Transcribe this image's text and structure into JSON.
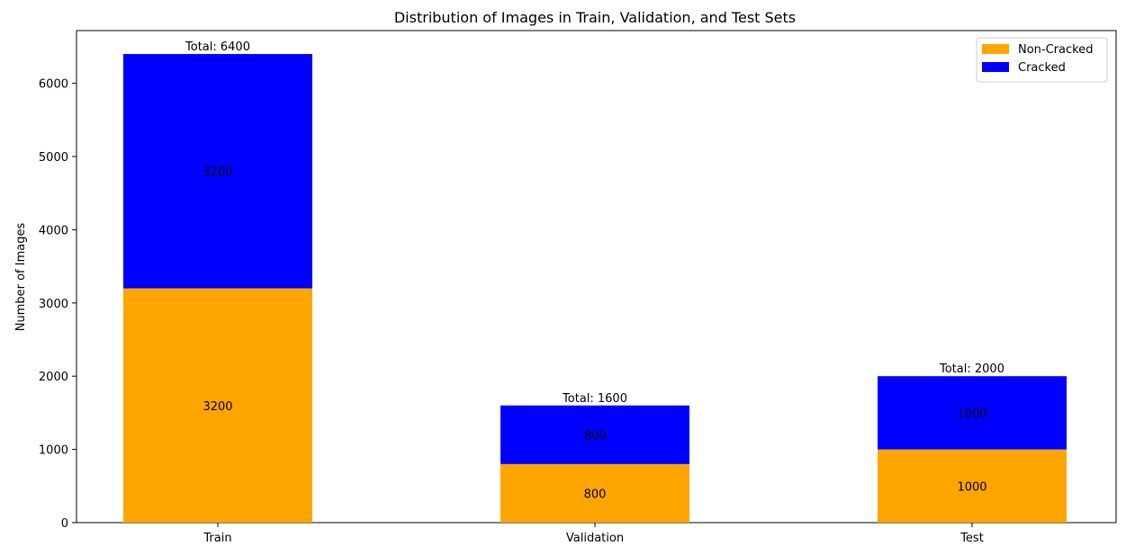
{
  "chart_data": {
    "type": "bar",
    "stacked": true,
    "title": "Distribution of Images in Train, Validation, and Test Sets",
    "xlabel": "",
    "ylabel": "Number of Images",
    "categories": [
      "Train",
      "Validation",
      "Test"
    ],
    "series": [
      {
        "name": "Non-Cracked",
        "color": "#ffa500",
        "values": [
          3200,
          800,
          1000
        ]
      },
      {
        "name": "Cracked",
        "color": "#0000ff",
        "values": [
          3200,
          800,
          1000
        ]
      }
    ],
    "totals": [
      6400,
      1600,
      2000
    ],
    "total_prefix": "Total: ",
    "ylim": [
      0,
      6720
    ],
    "yticks": [
      0,
      1000,
      2000,
      3000,
      4000,
      5000,
      6000
    ],
    "grid": false,
    "legend_position": "upper right"
  }
}
